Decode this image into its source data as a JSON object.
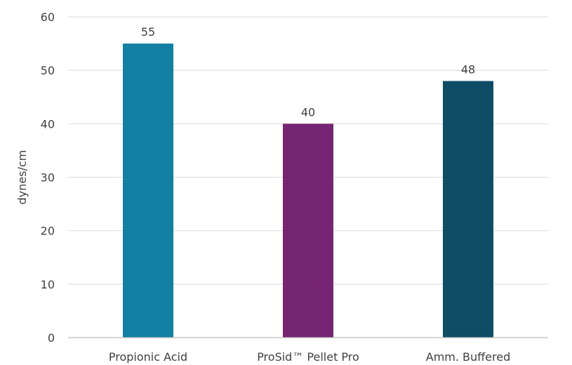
{
  "chart_data": {
    "type": "bar",
    "title": "",
    "xlabel": "",
    "ylabel": "dynes/cm",
    "ylim": [
      0,
      60
    ],
    "yticks": [
      0,
      10,
      20,
      30,
      40,
      50,
      60
    ],
    "grid": true,
    "legend": "none",
    "categories": [
      "Propionic Acid",
      "ProSid™ Pellet Pro",
      "Amm. Buffered"
    ],
    "values": [
      55,
      40,
      48
    ],
    "colors": [
      "#127fa3",
      "#762573",
      "#0f4c66"
    ],
    "data_labels": true
  }
}
